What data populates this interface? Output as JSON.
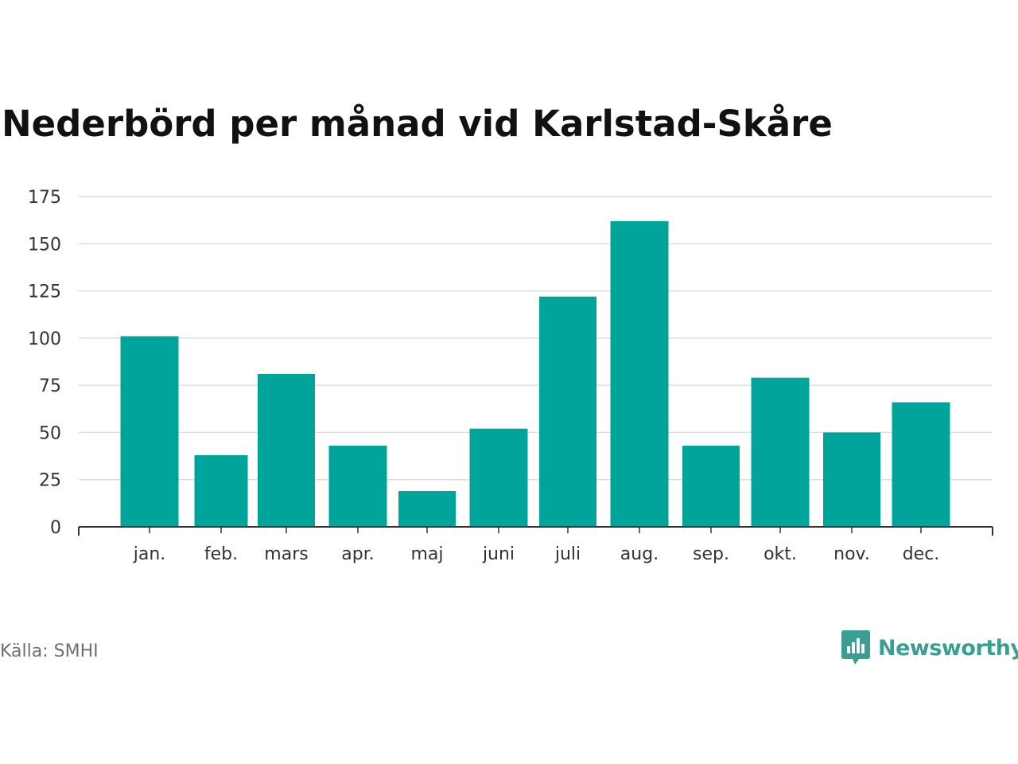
{
  "colors": {
    "bar": "#00a49a",
    "grid": "#dddddd",
    "axis": "#333333",
    "tick_text": "#333333",
    "brand": "#3a9e92"
  },
  "chart_data": {
    "type": "bar",
    "title": "Nederbörd per månad vid Karlstad-Skåre",
    "xlabel": "",
    "ylabel": "",
    "categories": [
      "jan.",
      "feb.",
      "mars",
      "apr.",
      "maj",
      "juni",
      "juli",
      "aug.",
      "sep.",
      "okt.",
      "nov.",
      "dec."
    ],
    "values": [
      101,
      38,
      81,
      43,
      19,
      52,
      122,
      162,
      43,
      79,
      50,
      66
    ],
    "ylim": [
      0,
      175
    ],
    "yticks": [
      0,
      25,
      50,
      75,
      100,
      125,
      150,
      175
    ],
    "grid": true
  },
  "footer": {
    "source": "Källa: SMHI",
    "brand_name": "Newsworthy",
    "brand_icon": "bar-chart-speech-bubble-icon"
  }
}
